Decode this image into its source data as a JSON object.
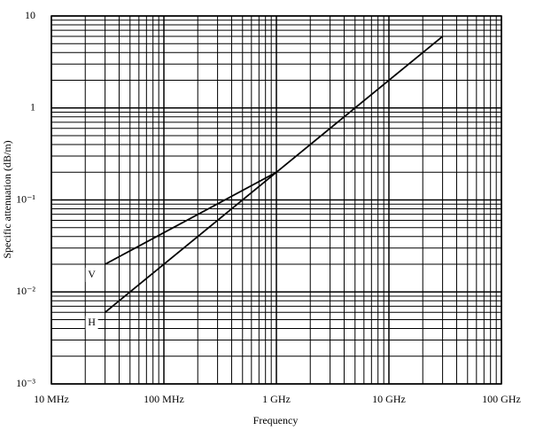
{
  "chart_data": {
    "type": "line",
    "x_label": "Frequency",
    "y_label": "Specific attenuation (dB/m)",
    "xlog": true,
    "ylog": true,
    "grid": true,
    "color": "#000000",
    "xlim": [
      10000000,
      100000000000
    ],
    "ylim": [
      0.001,
      10
    ],
    "xticks": [
      {
        "value": 10000000,
        "label": "10 MHz"
      },
      {
        "value": 100000000,
        "label": "100 MHz"
      },
      {
        "value": 1000000000,
        "label": "1 GHz"
      },
      {
        "value": 10000000000,
        "label": "10 GHz"
      },
      {
        "value": 100000000000,
        "label": "100 GHz"
      }
    ],
    "yticks": [
      {
        "value": 0.001,
        "label": "10⁻³"
      },
      {
        "value": 0.01,
        "label": "10⁻²"
      },
      {
        "value": 0.1,
        "label": "10⁻¹"
      },
      1,
      10
    ],
    "series": [
      {
        "name": "V",
        "color": "#000000",
        "x": [
          30000000,
          1000000000,
          30000000000
        ],
        "values": [
          0.02,
          0.2,
          6
        ]
      },
      {
        "name": "H",
        "color": "#000000",
        "x": [
          30000000,
          1000000000
        ],
        "values": [
          0.006,
          0.2
        ]
      }
    ]
  }
}
